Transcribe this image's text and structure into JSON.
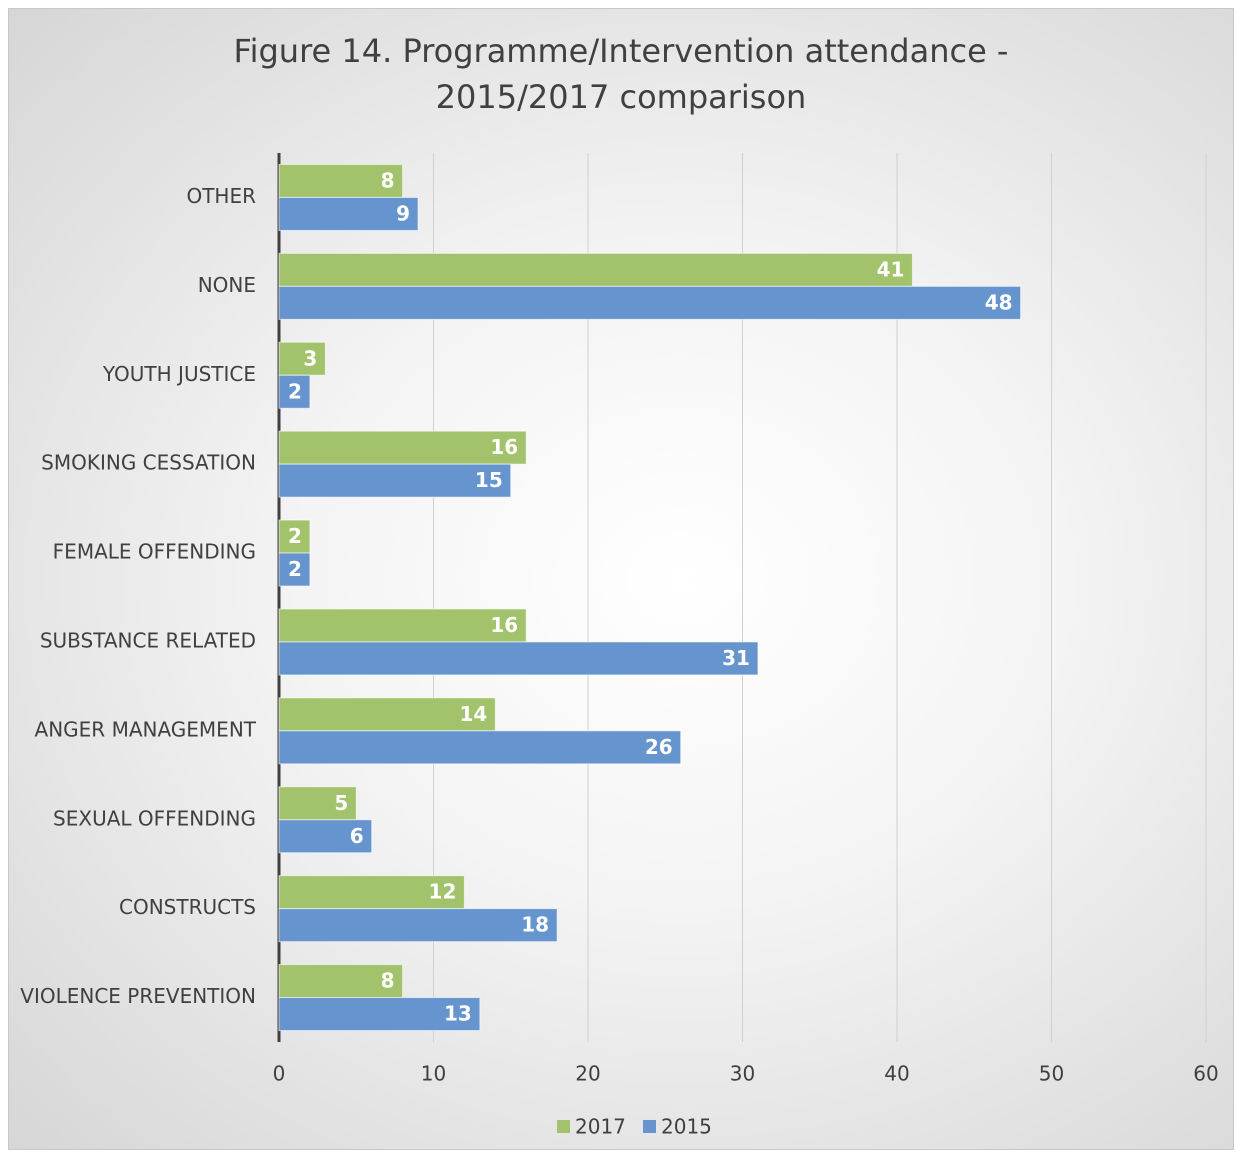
{
  "chart_data": {
    "type": "bar",
    "orientation": "horizontal",
    "title": "Figure 14. Programme/Intervention attendance - 2015/2017 comparison",
    "categories": [
      "OTHER",
      "NONE",
      "YOUTH JUSTICE",
      "SMOKING CESSATION",
      "FEMALE OFFENDING",
      "SUBSTANCE RELATED",
      "ANGER MANAGEMENT",
      "SEXUAL OFFENDING",
      "CONSTRUCTS",
      "VIOLENCE PREVENTION"
    ],
    "series": [
      {
        "name": "2017",
        "color": "#a2c36b",
        "values": [
          8,
          41,
          3,
          16,
          2,
          16,
          14,
          5,
          12,
          8
        ]
      },
      {
        "name": "2015",
        "color": "#6694cf",
        "values": [
          9,
          48,
          2,
          15,
          2,
          31,
          26,
          6,
          18,
          13
        ]
      }
    ],
    "xlim": [
      0,
      60
    ],
    "xticks": [
      0,
      10,
      20,
      30,
      40,
      50,
      60
    ],
    "grid": true,
    "legend": "bottom"
  }
}
